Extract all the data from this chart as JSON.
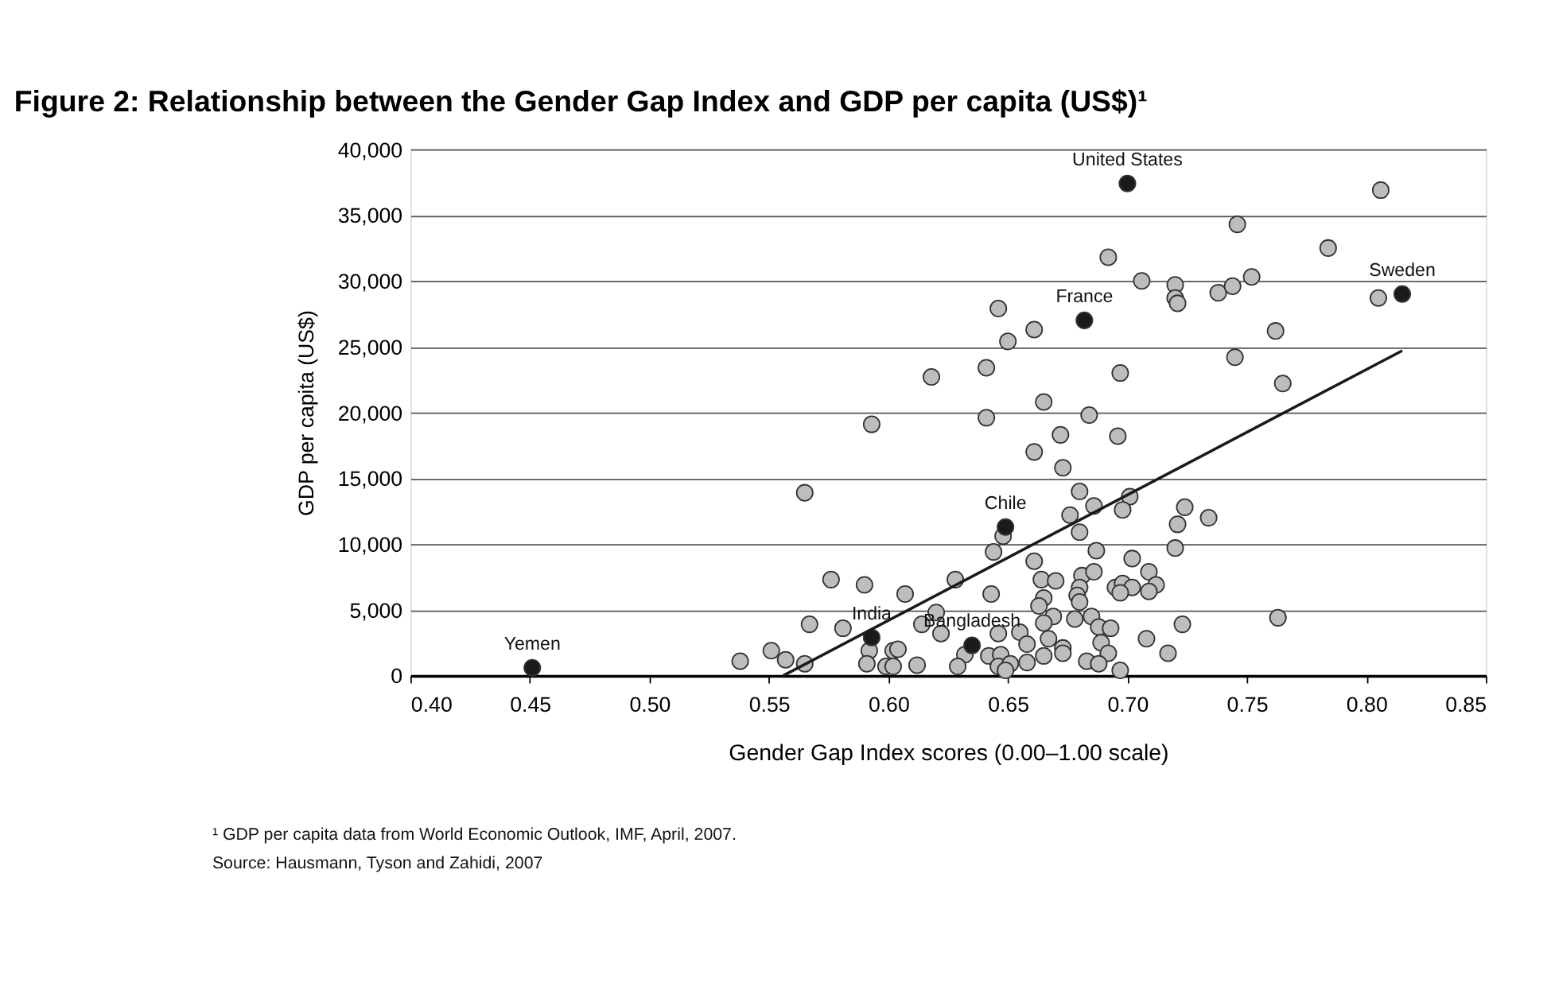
{
  "chart_data": {
    "type": "scatter",
    "title": "Figure 2: Relationship between the Gender Gap Index and GDP per capita (US$)¹",
    "xlabel": "Gender Gap Index scores (0.00–1.00 scale)",
    "ylabel": "GDP per capita (US$)",
    "xlim": [
      0.4,
      0.85
    ],
    "xticks": [
      {
        "value": 0.4,
        "label": "0.40"
      },
      0.45,
      {
        "value": 0.5,
        "label": "0.50"
      },
      0.55,
      {
        "value": 0.6,
        "label": "0.60"
      },
      0.65,
      {
        "value": 0.7,
        "label": "0.70"
      },
      0.75,
      {
        "value": 0.8,
        "label": "0.80"
      },
      0.85
    ],
    "ylim": [
      0,
      40000
    ],
    "yticks": [
      0,
      {
        "value": 5000,
        "label": "5,000"
      },
      {
        "value": 10000,
        "label": "10,000"
      },
      {
        "value": 15000,
        "label": "15,000"
      },
      {
        "value": 20000,
        "label": "20,000"
      },
      {
        "value": 25000,
        "label": "25,000"
      },
      {
        "value": 30000,
        "label": "30,000"
      },
      {
        "value": 35000,
        "label": "35,000"
      },
      {
        "value": 40000,
        "label": "40,000"
      }
    ],
    "grid": "y",
    "series": [
      {
        "type": "scatter",
        "marker": "circle",
        "color": "#bdbdbd",
        "x": [
          0.806,
          0.746,
          0.784,
          0.692,
          0.706,
          0.72,
          0.72,
          0.721,
          0.738,
          0.744,
          0.752,
          0.805,
          0.646,
          0.661,
          0.65,
          0.762,
          0.745,
          0.765,
          0.618,
          0.641,
          0.697,
          0.665,
          0.641,
          0.684,
          0.672,
          0.696,
          0.661,
          0.673,
          0.68,
          0.701,
          0.686,
          0.698,
          0.724,
          0.734,
          0.721,
          0.676,
          0.68,
          0.648,
          0.644,
          0.687,
          0.72,
          0.661,
          0.702,
          0.709,
          0.628,
          0.664,
          0.67,
          0.681,
          0.686,
          0.68,
          0.695,
          0.698,
          0.702,
          0.712,
          0.709,
          0.697,
          0.643,
          0.679,
          0.68,
          0.665,
          0.663,
          0.62,
          0.669,
          0.665,
          0.678,
          0.685,
          0.688,
          0.693,
          0.723,
          0.763,
          0.614,
          0.622,
          0.646,
          0.655,
          0.667,
          0.658,
          0.673,
          0.673,
          0.689,
          0.692,
          0.708,
          0.717,
          0.632,
          0.629,
          0.642,
          0.647,
          0.646,
          0.651,
          0.649,
          0.658,
          0.665,
          0.683,
          0.688,
          0.697,
          0.593,
          0.565,
          0.576,
          0.59,
          0.607,
          0.567,
          0.581,
          0.551,
          0.538,
          0.557,
          0.565,
          0.592,
          0.591,
          0.602,
          0.604,
          0.599,
          0.602,
          0.612
        ],
        "values": [
          36900,
          34300,
          32500,
          31800,
          30000,
          29700,
          28700,
          28300,
          29100,
          29600,
          30300,
          28700,
          27900,
          26300,
          25400,
          26200,
          24200,
          22200,
          22700,
          23400,
          23000,
          20800,
          19600,
          19800,
          18300,
          18200,
          17000,
          15800,
          14000,
          13600,
          12900,
          12600,
          12800,
          12000,
          11500,
          12200,
          10900,
          10600,
          9400,
          9500,
          9700,
          8700,
          8900,
          7900,
          7300,
          7300,
          7200,
          7600,
          7900,
          6700,
          6700,
          7000,
          6700,
          6900,
          6400,
          6300,
          6200,
          6100,
          5600,
          5900,
          5300,
          4800,
          4500,
          4000,
          4300,
          4500,
          3700,
          3600,
          3900,
          4400,
          3900,
          3200,
          3200,
          3300,
          2800,
          2400,
          2100,
          1700,
          2500,
          1700,
          2800,
          1700,
          1600,
          700,
          1500,
          1600,
          700,
          900,
          400,
          1000,
          1500,
          1100,
          900,
          400,
          19100,
          13900,
          7300,
          6900,
          6200,
          3900,
          3600,
          1900,
          1100,
          1200,
          900,
          1900,
          900,
          1900,
          2000,
          700,
          700,
          800
        ]
      },
      {
        "type": "scatter",
        "marker": "circle",
        "color": "#1a1a1a",
        "x": [
          0.7,
          0.682,
          0.815,
          0.649,
          0.635,
          0.593,
          0.451
        ],
        "values": [
          37400,
          27000,
          29000,
          11300,
          2300,
          2900,
          600
        ]
      },
      {
        "type": "line",
        "line_style": "solid",
        "color": "#1a1a1a",
        "x": [
          0.556,
          0.815
        ],
        "values": [
          0,
          24700
        ]
      }
    ],
    "annotations": [
      {
        "text": "United States",
        "x": 0.7,
        "y": 37400
      },
      {
        "text": "France",
        "x": 0.682,
        "y": 27000
      },
      {
        "text": "Sweden",
        "x": 0.815,
        "y": 29000
      },
      {
        "text": "Chile",
        "x": 0.649,
        "y": 11300
      },
      {
        "text": "Bangladesh",
        "x": 0.635,
        "y": 2300
      },
      {
        "text": "India",
        "x": 0.593,
        "y": 2900
      },
      {
        "text": "Yemen",
        "x": 0.451,
        "y": 600
      },
      "¹ GDP per capita data from World Economic Outlook, IMF, April, 2007.",
      "Source: Hausmann, Tyson and Zahidi, 2007"
    ]
  }
}
